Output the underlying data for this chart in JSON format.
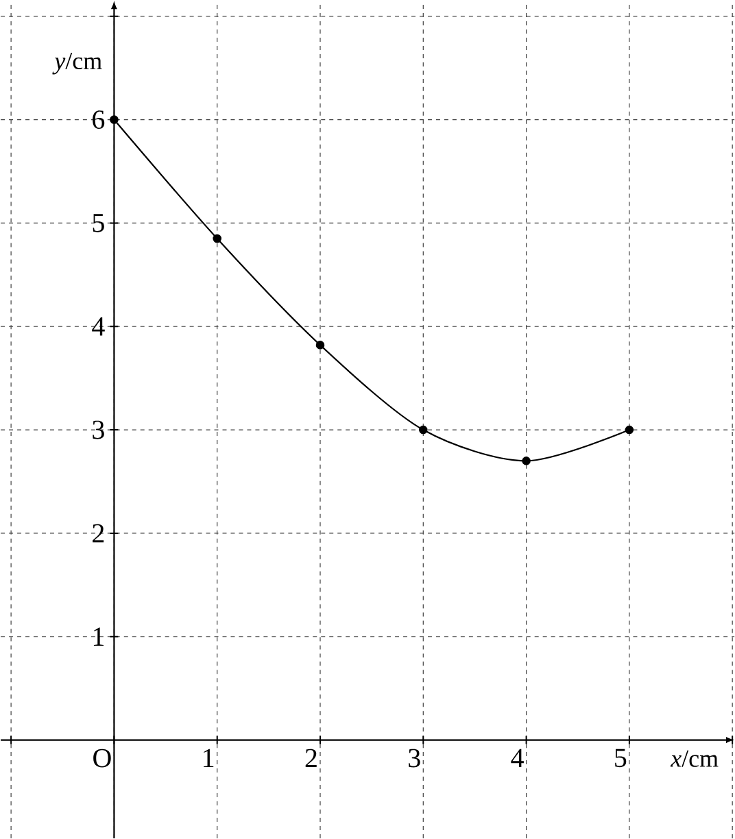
{
  "chart_data": {
    "type": "line",
    "xlabel": "*x*/cm",
    "ylabel": "*y*/cm",
    "x": [
      0,
      1,
      2,
      3,
      4,
      5
    ],
    "series": [
      {
        "color": "#000000",
        "values": [
          6,
          4.85,
          3.82,
          3,
          2.7,
          3
        ]
      }
    ],
    "xlim": [
      -1.1,
      6.02
    ],
    "ylim": [
      -0.95,
      7.15
    ],
    "xticks": [
      {
        "value": -1,
        "label": null
      },
      {
        "value": 0,
        "label": "O"
      },
      1,
      2,
      3,
      4,
      5,
      {
        "value": 6,
        "label": null
      }
    ],
    "yticks": [
      1,
      2,
      3,
      4,
      5,
      6,
      {
        "value": 7,
        "label": null
      }
    ],
    "grid": true,
    "marker": "circle",
    "line_style": "solid"
  }
}
